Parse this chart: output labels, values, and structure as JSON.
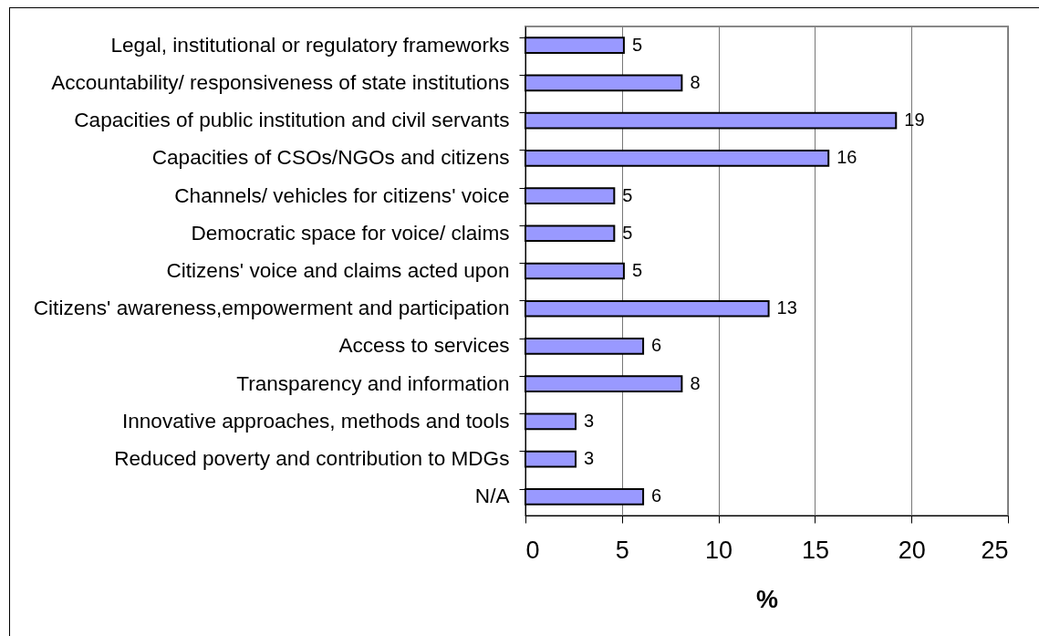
{
  "chart_data": {
    "type": "bar",
    "orientation": "horizontal",
    "categories": [
      "Legal, institutional or regulatory frameworks",
      "Accountability/ responsiveness of state institutions",
      "Capacities of public institution and civil servants",
      "Capacities of CSOs/NGOs and citizens",
      "Channels/ vehicles for citizens' voice",
      "Democratic space for voice/ claims",
      "Citizens' voice and claims acted upon",
      "Citizens' awareness,empowerment and participation",
      "Access to services",
      "Transparency and information",
      "Innovative approaches, methods and tools",
      "Reduced poverty and contribution to MDGs",
      "N/A"
    ],
    "values": [
      5.1,
      8.1,
      19.2,
      15.7,
      4.6,
      4.6,
      5.1,
      12.6,
      6.1,
      8.1,
      2.6,
      2.6,
      6.1
    ],
    "value_labels": [
      "5",
      "8",
      "19",
      "16",
      "5",
      "5",
      "5",
      "13",
      "6",
      "8",
      "3",
      "3",
      "6"
    ],
    "color": "#9999ff",
    "xlabel": "%",
    "xlim": [
      0,
      25
    ],
    "xticks": [
      0,
      5,
      10,
      15,
      20,
      25
    ],
    "grid": "x"
  }
}
